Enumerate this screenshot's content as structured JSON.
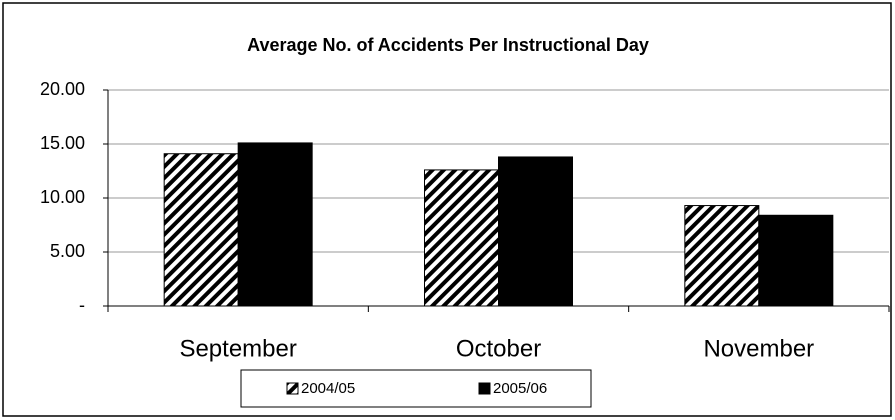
{
  "chart_data": {
    "type": "bar",
    "title": "Average No. of Accidents Per Instructional Day",
    "categories": [
      "September",
      "October",
      "November"
    ],
    "series": [
      {
        "name": "2004/05",
        "color": "#000000",
        "pattern": "diagonal-hatch",
        "values": [
          14.1,
          12.6,
          9.3
        ]
      },
      {
        "name": "2005/06",
        "color": "#000000",
        "pattern": "solid",
        "values": [
          15.1,
          13.8,
          8.4
        ]
      }
    ],
    "ylim": [
      0,
      20
    ],
    "yticks": [
      {
        "value": 0,
        "label": "-"
      },
      {
        "value": 5,
        "label": "5.00"
      },
      {
        "value": 10,
        "label": "10.00"
      },
      {
        "value": 15,
        "label": "15.00"
      },
      {
        "value": 20,
        "label": "20.00"
      }
    ],
    "grid": true,
    "legend": "bottom"
  }
}
